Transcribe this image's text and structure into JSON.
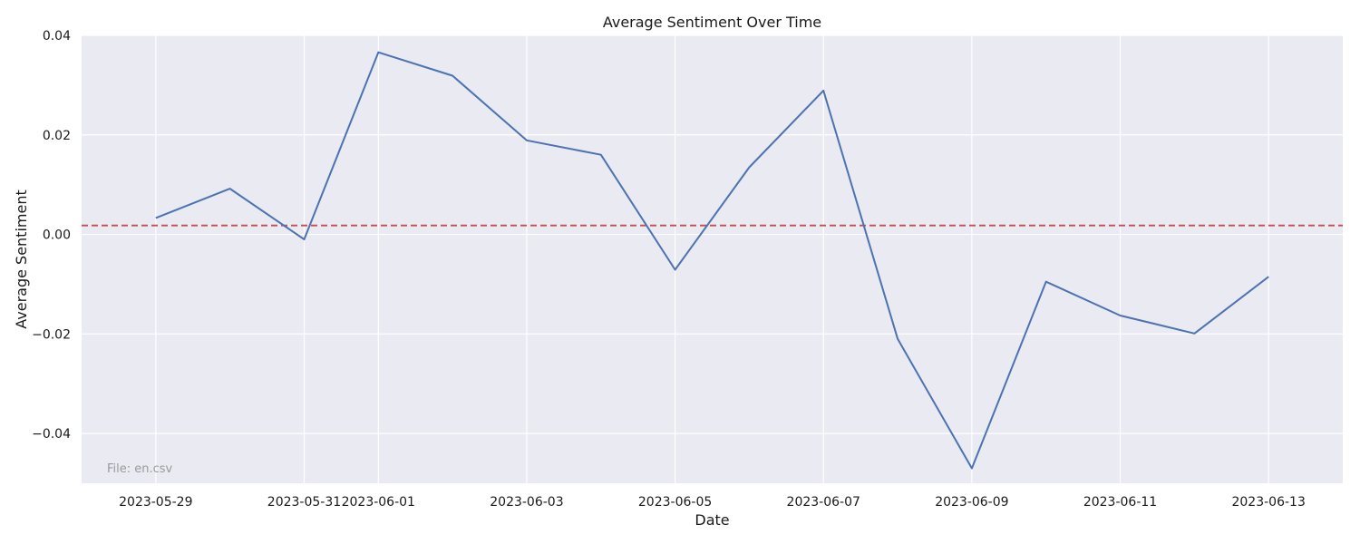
{
  "chart_data": {
    "type": "line",
    "title": "Average Sentiment Over Time",
    "xlabel": "Date",
    "ylabel": "Average Sentiment",
    "grid": true,
    "legend": "none",
    "xlim": [
      "2023-05-28",
      "2023-06-14"
    ],
    "ylim": [
      -0.05,
      0.04
    ],
    "x_ticks": [
      "2023-05-29",
      "2023-05-31",
      "2023-06-01",
      "2023-06-03",
      "2023-06-05",
      "2023-06-07",
      "2023-06-09",
      "2023-06-11",
      "2023-06-13"
    ],
    "y_ticks": [
      0.04,
      0.02,
      0.0,
      -0.02,
      -0.04
    ],
    "y_tick_labels": [
      "0.04",
      "0.02",
      "0.00",
      "−0.02",
      "−0.04"
    ],
    "series": [
      {
        "color": "#4c72b0",
        "x": [
          "2023-05-29",
          "2023-05-30",
          "2023-05-31",
          "2023-06-01",
          "2023-06-02",
          "2023-06-03",
          "2023-06-04",
          "2023-06-05",
          "2023-06-06",
          "2023-06-07",
          "2023-06-08",
          "2023-06-09",
          "2023-06-10",
          "2023-06-11",
          "2023-06-12",
          "2023-06-13"
        ],
        "y": [
          0.0033,
          0.0092,
          -0.001,
          0.0366,
          0.0319,
          0.0189,
          0.016,
          -0.0071,
          0.0135,
          0.0289,
          -0.021,
          -0.047,
          -0.0095,
          -0.0163,
          -0.0199,
          -0.0085
        ]
      }
    ],
    "reference_line": {
      "y": 0.0018,
      "color": "#c44e52",
      "style": "dashed"
    },
    "annotation": "File: en.csv",
    "colors": {
      "background": "#eaeaf2",
      "grid": "#ffffff"
    }
  }
}
